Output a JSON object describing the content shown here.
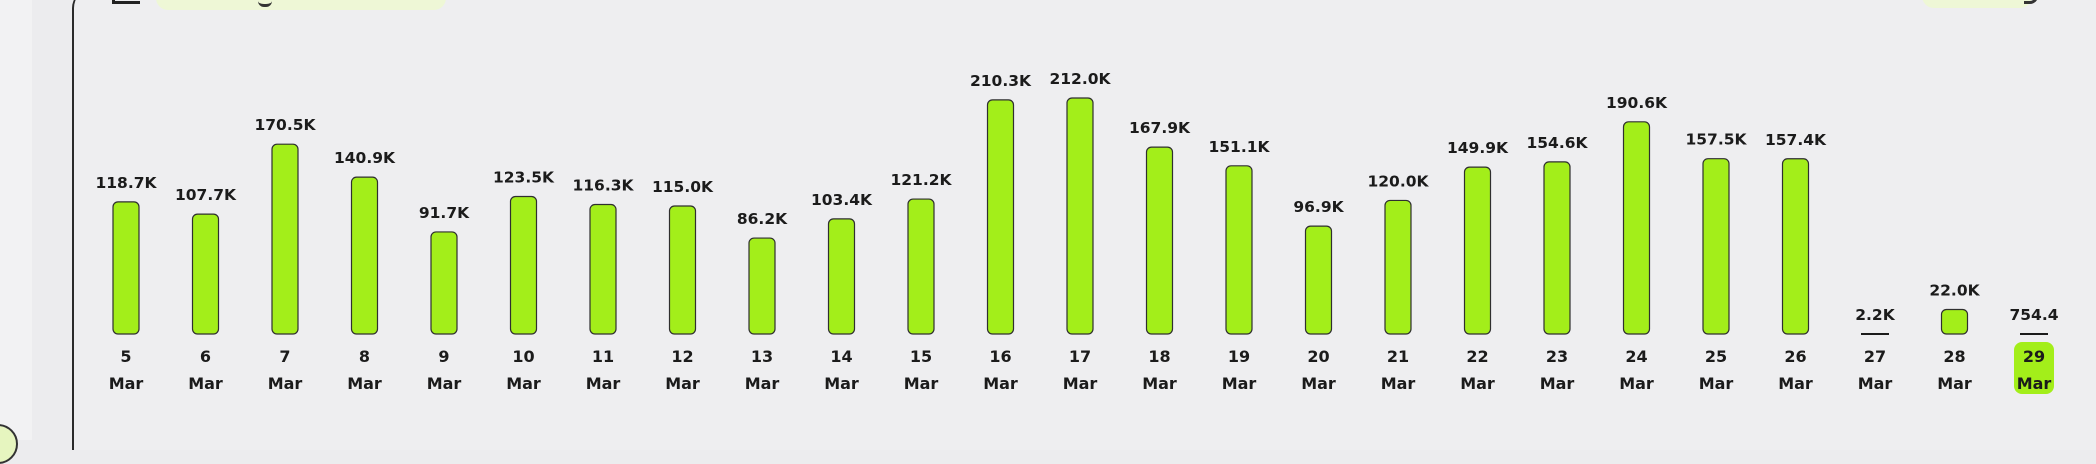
{
  "chart_data": {
    "type": "bar",
    "categories": [
      {
        "day": "5",
        "month": "Mar"
      },
      {
        "day": "6",
        "month": "Mar"
      },
      {
        "day": "7",
        "month": "Mar"
      },
      {
        "day": "8",
        "month": "Mar"
      },
      {
        "day": "9",
        "month": "Mar"
      },
      {
        "day": "10",
        "month": "Mar"
      },
      {
        "day": "11",
        "month": "Mar"
      },
      {
        "day": "12",
        "month": "Mar"
      },
      {
        "day": "13",
        "month": "Mar"
      },
      {
        "day": "14",
        "month": "Mar"
      },
      {
        "day": "15",
        "month": "Mar"
      },
      {
        "day": "16",
        "month": "Mar"
      },
      {
        "day": "17",
        "month": "Mar"
      },
      {
        "day": "18",
        "month": "Mar"
      },
      {
        "day": "19",
        "month": "Mar"
      },
      {
        "day": "20",
        "month": "Mar"
      },
      {
        "day": "21",
        "month": "Mar"
      },
      {
        "day": "22",
        "month": "Mar"
      },
      {
        "day": "23",
        "month": "Mar"
      },
      {
        "day": "24",
        "month": "Mar"
      },
      {
        "day": "25",
        "month": "Mar"
      },
      {
        "day": "26",
        "month": "Mar"
      },
      {
        "day": "27",
        "month": "Mar"
      },
      {
        "day": "28",
        "month": "Mar"
      },
      {
        "day": "29",
        "month": "Mar"
      }
    ],
    "values": [
      118700,
      107700,
      170500,
      140900,
      91700,
      123500,
      116300,
      115000,
      86200,
      103400,
      121200,
      210300,
      212000,
      167900,
      151100,
      96900,
      120000,
      149900,
      154600,
      190600,
      157500,
      157400,
      2200,
      22000,
      754.4
    ],
    "value_labels": [
      "118.7K",
      "107.7K",
      "170.5K",
      "140.9K",
      "91.7K",
      "123.5K",
      "116.3K",
      "115.0K",
      "86.2K",
      "103.4K",
      "121.2K",
      "210.3K",
      "212.0K",
      "167.9K",
      "151.1K",
      "96.9K",
      "120.0K",
      "149.9K",
      "154.6K",
      "190.6K",
      "157.5K",
      "157.4K",
      "2.2K",
      "22.0K",
      "754.4"
    ],
    "selected_index": 24,
    "bar_color": "#a3ee1a",
    "grid": false,
    "legend": "none"
  }
}
